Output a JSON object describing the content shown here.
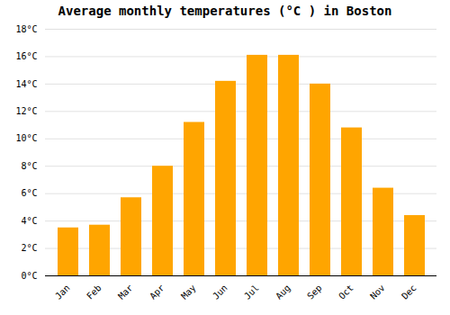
{
  "chart_data": {
    "type": "bar",
    "title": "Average monthly temperatures (°C ) in Boston",
    "categories": [
      "Jan",
      "Feb",
      "Mar",
      "Apr",
      "May",
      "Jun",
      "Jul",
      "Aug",
      "Sep",
      "Oct",
      "Nov",
      "Dec"
    ],
    "values": [
      3.5,
      3.7,
      5.7,
      8.0,
      11.2,
      14.2,
      16.1,
      16.1,
      14.0,
      10.8,
      6.4,
      4.4
    ],
    "color": "#FFA500",
    "ylim": [
      0,
      18
    ],
    "yticks": [
      {
        "value": 0,
        "label": "0°C"
      },
      {
        "value": 2,
        "label": "2°C"
      },
      {
        "value": 4,
        "label": "4°C"
      },
      {
        "value": 6,
        "label": "6°C"
      },
      {
        "value": 8,
        "label": "8°C"
      },
      {
        "value": 10,
        "label": "10°C"
      },
      {
        "value": 12,
        "label": "12°C"
      },
      {
        "value": 14,
        "label": "14°C"
      },
      {
        "value": 16,
        "label": "16°C"
      },
      {
        "value": 18,
        "label": "18°C"
      }
    ],
    "grid": true
  }
}
